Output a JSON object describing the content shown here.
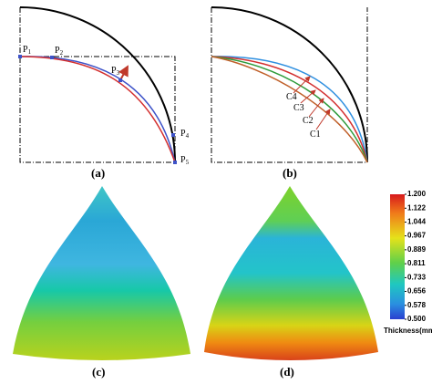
{
  "panels": [
    {
      "label": "(a)",
      "points": [
        {
          "base": "P",
          "sub": "1"
        },
        {
          "base": "P",
          "sub": "2"
        },
        {
          "base": "P",
          "sub": "3"
        },
        {
          "base": "P",
          "sub": "4"
        },
        {
          "base": "P",
          "sub": "5"
        }
      ]
    },
    {
      "label": "(b)",
      "curves": [
        "C1",
        "C2",
        "C3",
        "C4"
      ]
    },
    {
      "label": "(c)"
    },
    {
      "label": "(d)"
    }
  ],
  "colorbar": {
    "title": "Thickness(mm)",
    "range": [
      0.5,
      1.2
    ],
    "ticks": [
      {
        "value": 1.2,
        "label": "1.200"
      },
      {
        "value": 1.122,
        "label": "1.122"
      },
      {
        "value": 1.044,
        "label": "1.044"
      },
      {
        "value": 0.967,
        "label": "0.967"
      },
      {
        "value": 0.889,
        "label": "0.889"
      },
      {
        "value": 0.811,
        "label": "0.811"
      },
      {
        "value": 0.733,
        "label": "0.733"
      },
      {
        "value": 0.656,
        "label": "0.656"
      },
      {
        "value": 0.578,
        "label": "0.578"
      },
      {
        "value": 0.5,
        "label": "0.500"
      }
    ]
  }
}
